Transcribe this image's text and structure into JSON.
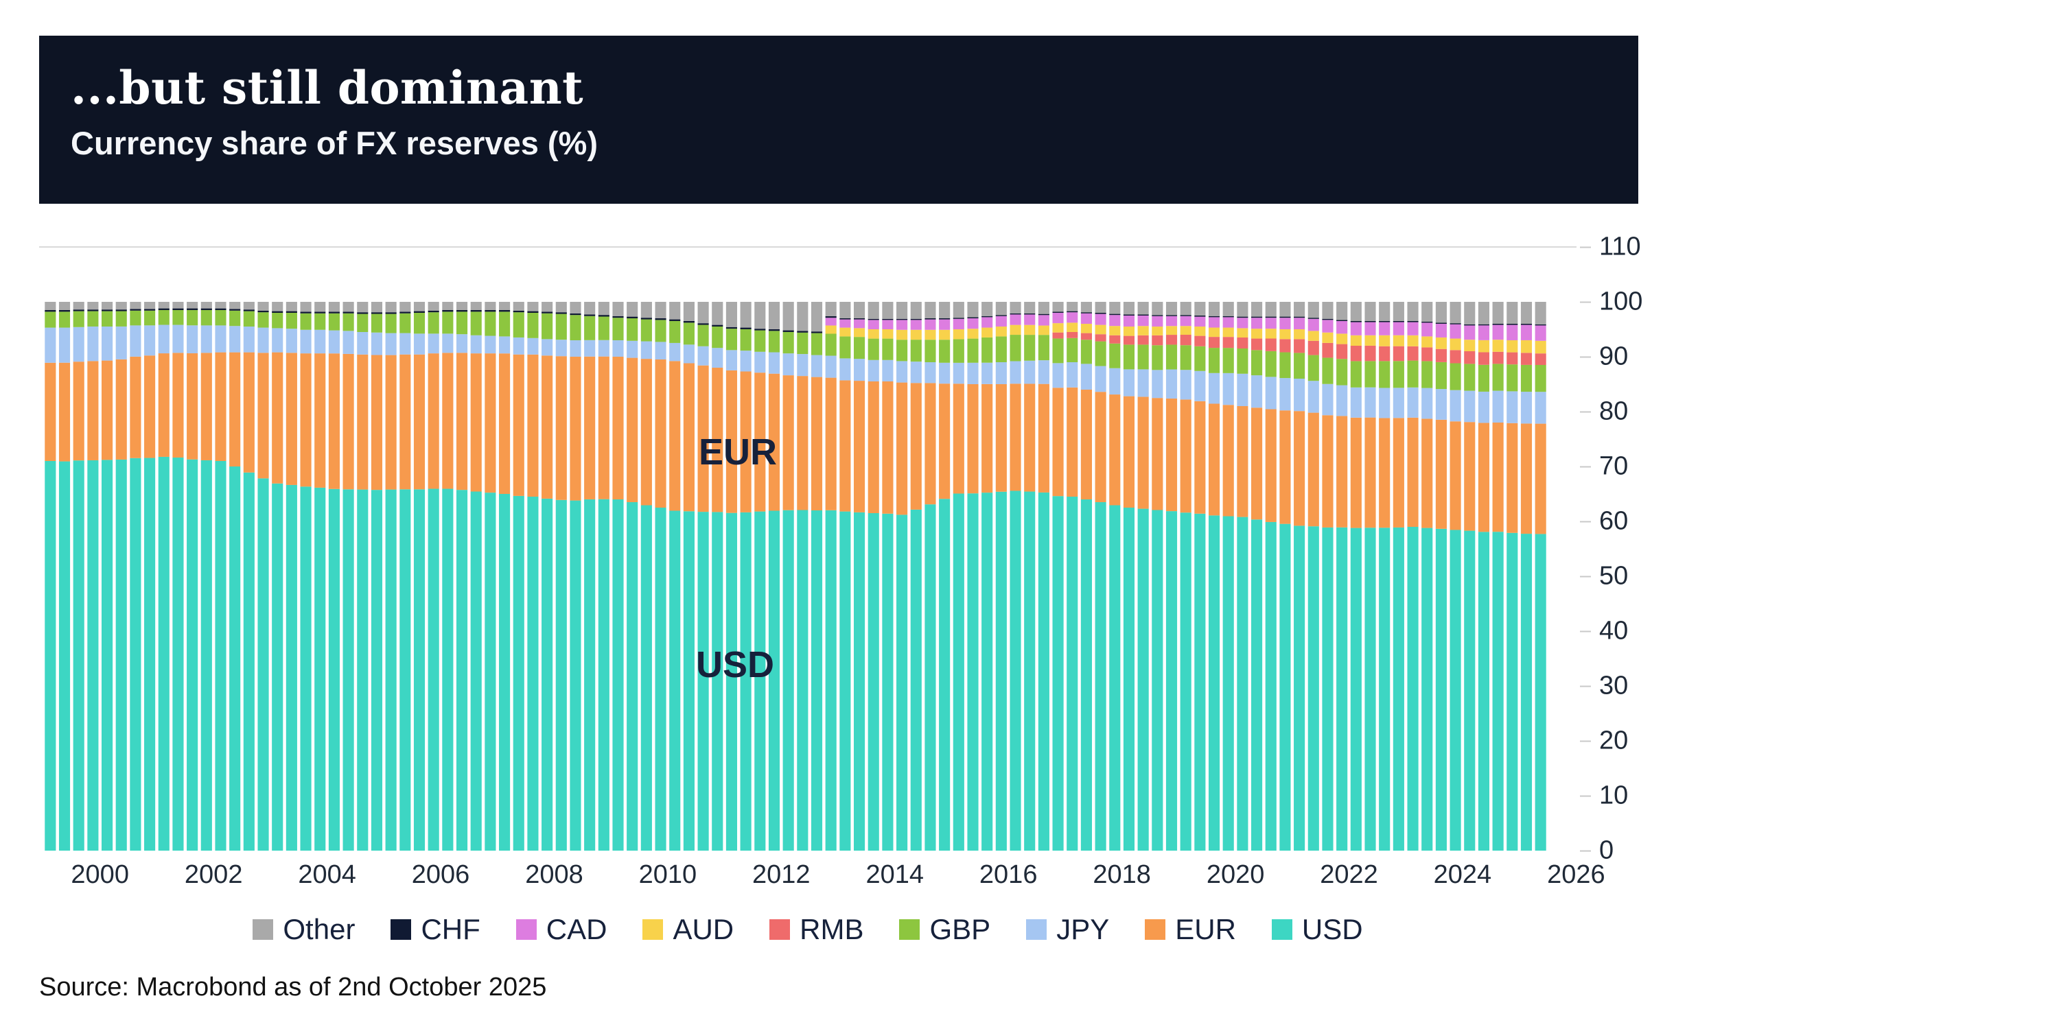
{
  "header": {
    "title": "...but still dominant",
    "subtitle": "Currency share of FX reserves (%)"
  },
  "footer": {
    "source": "Source: Macrobond as of 2nd October 2025"
  },
  "theme": {
    "header_bg": "#0d1424",
    "grid_color": "#d9d9d9",
    "axis_text_color": "#1f2937"
  },
  "chart_data": {
    "type": "bar",
    "stacked": true,
    "unit": "%",
    "frequency": "quarterly",
    "x_start": "1999 Q1",
    "x_end": "2025 Q2",
    "ylim": [
      0,
      110
    ],
    "grid": "top-line-only",
    "legend_position": "bottom",
    "y_ticks": [
      0,
      10,
      20,
      30,
      40,
      50,
      60,
      70,
      80,
      90,
      100,
      110
    ],
    "x_axis": {
      "origin_year": 1999,
      "ticks": [
        2000,
        2002,
        2004,
        2006,
        2008,
        2010,
        2012,
        2014,
        2016,
        2018,
        2020,
        2022,
        2024,
        2026
      ]
    },
    "annotations": [
      {
        "text": "EUR"
      },
      {
        "text": "USD"
      }
    ],
    "series": [
      {
        "name": "USD",
        "color": "#3dd6c3",
        "values": [
          71.0,
          71.0,
          71.1,
          71.2,
          71.2,
          71.4,
          71.6,
          71.7,
          71.9,
          71.7,
          71.5,
          71.2,
          71.0,
          70.0,
          68.9,
          67.9,
          66.9,
          66.7,
          66.4,
          66.2,
          65.9,
          65.9,
          65.8,
          65.8,
          65.8,
          65.9,
          65.9,
          66.0,
          66.0,
          65.8,
          65.5,
          65.3,
          65.0,
          64.7,
          64.5,
          64.2,
          63.9,
          63.8,
          64.2,
          64.3,
          64.0,
          63.5,
          63.0,
          62.5,
          62.0,
          61.9,
          61.8,
          61.7,
          61.6,
          61.7,
          61.8,
          62.0,
          62.1,
          62.0,
          62.0,
          61.9,
          61.8,
          61.7,
          61.5,
          61.4,
          61.2,
          62.2,
          63.1,
          64.1,
          65.0,
          65.1,
          65.3,
          65.4,
          65.5,
          65.3,
          65.0,
          64.8,
          64.5,
          64.0,
          63.5,
          63.0,
          62.5,
          62.3,
          62.0,
          61.8,
          61.6,
          61.4,
          61.2,
          61.0,
          60.8,
          60.4,
          60.0,
          59.6,
          59.2,
          59.1,
          59.0,
          58.9,
          58.8,
          58.9,
          58.9,
          59.0,
          59.0,
          58.8,
          58.7,
          58.5,
          58.3,
          58.2,
          58.1,
          57.9,
          57.8,
          57.7
        ]
      },
      {
        "name": "EUR",
        "color": "#f79a4d",
        "values": [
          17.9,
          18.0,
          18.0,
          18.1,
          18.1,
          18.3,
          18.5,
          18.7,
          18.9,
          19.1,
          19.4,
          19.6,
          19.8,
          20.8,
          21.9,
          22.9,
          23.9,
          24.1,
          24.3,
          24.5,
          24.7,
          24.7,
          24.6,
          24.6,
          24.5,
          24.6,
          24.6,
          24.7,
          24.8,
          25.0,
          25.2,
          25.4,
          25.6,
          25.8,
          25.9,
          26.1,
          26.2,
          26.2,
          26.1,
          26.1,
          26.0,
          26.3,
          26.7,
          27.0,
          27.3,
          27.0,
          26.7,
          26.3,
          26.0,
          25.7,
          25.3,
          25.0,
          24.6,
          24.4,
          24.3,
          24.1,
          23.9,
          24.0,
          24.0,
          24.1,
          24.1,
          23.1,
          22.1,
          21.0,
          20.0,
          19.9,
          19.8,
          19.6,
          19.5,
          19.6,
          19.7,
          19.8,
          19.9,
          20.0,
          20.1,
          20.2,
          20.3,
          20.4,
          20.4,
          20.5,
          20.6,
          20.5,
          20.4,
          20.3,
          20.2,
          20.4,
          20.6,
          20.7,
          20.9,
          20.7,
          20.5,
          20.3,
          20.1,
          20.1,
          20.0,
          20.0,
          19.9,
          19.9,
          19.9,
          19.8,
          19.8,
          19.9,
          19.9,
          20.0,
          20.1,
          20.1
        ]
      },
      {
        "name": "JPY",
        "color": "#a5c6f2",
        "values": [
          6.4,
          6.4,
          6.3,
          6.3,
          6.2,
          6.0,
          5.7,
          5.5,
          5.2,
          5.1,
          5.1,
          5.0,
          4.9,
          4.8,
          4.7,
          4.6,
          4.4,
          4.4,
          4.3,
          4.3,
          4.2,
          4.2,
          4.1,
          4.1,
          4.0,
          3.9,
          3.8,
          3.6,
          3.5,
          3.4,
          3.3,
          3.2,
          3.1,
          3.1,
          3.0,
          3.0,
          3.0,
          3.0,
          3.0,
          3.0,
          3.0,
          3.1,
          3.2,
          3.2,
          3.3,
          3.4,
          3.5,
          3.6,
          3.7,
          3.8,
          3.8,
          3.9,
          4.0,
          4.0,
          4.0,
          4.0,
          4.0,
          4.0,
          3.9,
          3.9,
          3.9,
          3.9,
          3.8,
          3.8,
          3.8,
          3.9,
          3.9,
          4.0,
          4.1,
          4.2,
          4.3,
          4.5,
          4.6,
          4.7,
          4.7,
          4.8,
          4.9,
          5.0,
          5.1,
          5.3,
          5.4,
          5.5,
          5.6,
          5.8,
          5.9,
          5.9,
          5.9,
          5.9,
          5.9,
          5.8,
          5.7,
          5.6,
          5.5,
          5.5,
          5.5,
          5.5,
          5.5,
          5.6,
          5.6,
          5.7,
          5.7,
          5.7,
          5.8,
          5.8,
          5.8,
          5.8
        ]
      },
      {
        "name": "GBP",
        "color": "#8dc63f",
        "values": [
          2.9,
          2.9,
          2.9,
          2.8,
          2.8,
          2.8,
          2.7,
          2.7,
          2.7,
          2.7,
          2.8,
          2.8,
          2.8,
          2.8,
          2.8,
          2.8,
          2.8,
          2.9,
          3.0,
          3.0,
          3.1,
          3.2,
          3.3,
          3.4,
          3.5,
          3.6,
          3.8,
          3.9,
          4.0,
          4.1,
          4.3,
          4.4,
          4.5,
          4.6,
          4.6,
          4.7,
          4.7,
          4.6,
          4.4,
          4.3,
          4.1,
          4.1,
          4.0,
          4.0,
          4.0,
          4.0,
          3.9,
          3.9,
          3.9,
          3.9,
          3.9,
          3.9,
          3.9,
          3.9,
          4.0,
          4.0,
          4.0,
          4.0,
          3.9,
          3.9,
          3.9,
          4.0,
          4.1,
          4.2,
          4.3,
          4.4,
          4.6,
          4.7,
          4.8,
          4.7,
          4.6,
          4.5,
          4.4,
          4.4,
          4.5,
          4.5,
          4.5,
          4.5,
          4.5,
          4.5,
          4.5,
          4.5,
          4.6,
          4.6,
          4.6,
          4.6,
          4.7,
          4.7,
          4.7,
          4.7,
          4.8,
          4.8,
          4.8,
          4.8,
          4.9,
          4.9,
          4.9,
          4.9,
          4.9,
          4.9,
          4.9,
          4.9,
          4.9,
          4.9,
          4.9,
          4.9
        ]
      },
      {
        "name": "RMB",
        "color": "#ef6b6b",
        "values": [
          0,
          0,
          0,
          0,
          0,
          0,
          0,
          0,
          0,
          0,
          0,
          0,
          0,
          0,
          0,
          0,
          0,
          0,
          0,
          0,
          0,
          0,
          0,
          0,
          0,
          0,
          0,
          0,
          0,
          0,
          0,
          0,
          0,
          0,
          0,
          0,
          0,
          0,
          0,
          0,
          0,
          0,
          0,
          0,
          0,
          0,
          0,
          0,
          0,
          0,
          0,
          0,
          0,
          0,
          0,
          0,
          0,
          0,
          0,
          0,
          0,
          0,
          0,
          0,
          0,
          0,
          0,
          0,
          0,
          0,
          0,
          1.1,
          1.1,
          1.2,
          1.3,
          1.5,
          1.6,
          1.7,
          1.8,
          1.8,
          1.9,
          1.9,
          2.0,
          2.0,
          2.0,
          2.1,
          2.3,
          2.4,
          2.5,
          2.6,
          2.7,
          2.7,
          2.8,
          2.8,
          2.7,
          2.7,
          2.6,
          2.5,
          2.4,
          2.4,
          2.3,
          2.3,
          2.2,
          2.2,
          2.2,
          2.1
        ]
      },
      {
        "name": "AUD",
        "color": "#f8d24b",
        "values": [
          0,
          0,
          0,
          0,
          0,
          0,
          0,
          0,
          0,
          0,
          0,
          0,
          0,
          0,
          0,
          0,
          0,
          0,
          0,
          0,
          0,
          0,
          0,
          0,
          0,
          0,
          0,
          0,
          0,
          0,
          0,
          0,
          0,
          0,
          0,
          0,
          0,
          0,
          0,
          0,
          0,
          0,
          0,
          0,
          0,
          0,
          0,
          0,
          0,
          0,
          0,
          0,
          0,
          0,
          0,
          1.5,
          1.6,
          1.6,
          1.7,
          1.7,
          1.8,
          1.8,
          1.8,
          1.8,
          1.8,
          1.8,
          1.8,
          1.8,
          1.8,
          1.8,
          1.7,
          1.7,
          1.7,
          1.7,
          1.7,
          1.7,
          1.7,
          1.7,
          1.6,
          1.6,
          1.6,
          1.7,
          1.7,
          1.7,
          1.7,
          1.8,
          1.8,
          1.8,
          1.8,
          1.8,
          1.9,
          1.9,
          1.9,
          1.9,
          2.0,
          2.0,
          2.0,
          2.0,
          2.1,
          2.1,
          2.1,
          2.2,
          2.2,
          2.2,
          2.3,
          2.3
        ]
      },
      {
        "name": "CAD",
        "color": "#dd7de0",
        "values": [
          0,
          0,
          0,
          0,
          0,
          0,
          0,
          0,
          0,
          0,
          0,
          0,
          0,
          0,
          0,
          0,
          0,
          0,
          0,
          0,
          0,
          0,
          0,
          0,
          0,
          0,
          0,
          0,
          0,
          0,
          0,
          0,
          0,
          0,
          0,
          0,
          0,
          0,
          0,
          0,
          0,
          0,
          0,
          0,
          0,
          0,
          0,
          0,
          0,
          0,
          0,
          0,
          0,
          0,
          0,
          1.4,
          1.5,
          1.6,
          1.7,
          1.7,
          1.8,
          1.8,
          1.9,
          1.9,
          1.9,
          1.9,
          1.9,
          1.9,
          1.9,
          1.9,
          1.9,
          1.9,
          1.9,
          1.9,
          2.0,
          2.0,
          2.0,
          1.9,
          1.9,
          1.8,
          1.8,
          1.8,
          1.9,
          1.9,
          1.9,
          2.0,
          2.0,
          2.1,
          2.1,
          2.2,
          2.3,
          2.3,
          2.4,
          2.4,
          2.4,
          2.4,
          2.4,
          2.5,
          2.5,
          2.6,
          2.6,
          2.7,
          2.7,
          2.8,
          2.8,
          2.8
        ]
      },
      {
        "name": "CHF",
        "color": "#101a33",
        "values": [
          0.3,
          0.3,
          0.3,
          0.3,
          0.3,
          0.3,
          0.3,
          0.3,
          0.3,
          0.3,
          0.3,
          0.3,
          0.3,
          0.3,
          0.3,
          0.3,
          0.3,
          0.3,
          0.3,
          0.3,
          0.3,
          0.3,
          0.3,
          0.3,
          0.3,
          0.3,
          0.3,
          0.3,
          0.3,
          0.3,
          0.3,
          0.3,
          0.3,
          0.3,
          0.3,
          0.3,
          0.3,
          0.3,
          0.3,
          0.3,
          0.3,
          0.3,
          0.3,
          0.3,
          0.3,
          0.3,
          0.3,
          0.3,
          0.3,
          0.3,
          0.3,
          0.3,
          0.3,
          0.3,
          0.3,
          0.3,
          0.2,
          0.2,
          0.2,
          0.2,
          0.2,
          0.2,
          0.2,
          0.2,
          0.2,
          0.2,
          0.2,
          0.2,
          0.2,
          0.2,
          0.2,
          0.2,
          0.2,
          0.2,
          0.2,
          0.2,
          0.2,
          0.2,
          0.2,
          0.2,
          0.2,
          0.2,
          0.2,
          0.2,
          0.2,
          0.2,
          0.2,
          0.2,
          0.2,
          0.2,
          0.2,
          0.2,
          0.2,
          0.2,
          0.2,
          0.2,
          0.2,
          0.2,
          0.2,
          0.2,
          0.2,
          0.2,
          0.2,
          0.2,
          0.2,
          0.2
        ]
      },
      {
        "name": "Other",
        "color": "#a9a9a9",
        "values": [
          1.5,
          1.5,
          1.4,
          1.4,
          1.4,
          1.4,
          1.3,
          1.3,
          1.2,
          1.2,
          1.2,
          1.2,
          1.2,
          1.3,
          1.4,
          1.6,
          1.7,
          1.7,
          1.8,
          1.8,
          1.8,
          1.8,
          1.9,
          1.9,
          1.9,
          1.8,
          1.7,
          1.6,
          1.5,
          1.5,
          1.5,
          1.5,
          1.5,
          1.6,
          1.7,
          1.8,
          1.9,
          2.1,
          2.3,
          2.4,
          2.6,
          2.7,
          2.9,
          3.0,
          3.2,
          3.5,
          3.9,
          4.2,
          4.6,
          4.7,
          4.9,
          5.0,
          5.2,
          5.3,
          5.4,
          2.6,
          3.0,
          3.0,
          3.1,
          3.1,
          3.1,
          3.1,
          3.0,
          3.0,
          2.9,
          2.8,
          2.6,
          2.4,
          2.1,
          2.1,
          2.2,
          1.8,
          1.7,
          1.9,
          2.0,
          2.2,
          2.3,
          2.3,
          2.4,
          2.4,
          2.4,
          2.5,
          2.6,
          2.6,
          2.7,
          2.7,
          2.7,
          2.7,
          2.7,
          2.9,
          3.1,
          3.3,
          3.5,
          3.5,
          3.5,
          3.5,
          3.5,
          3.6,
          3.8,
          3.9,
          4.1,
          4.1,
          4.0,
          4.0,
          4.0,
          4.1
        ]
      }
    ]
  }
}
